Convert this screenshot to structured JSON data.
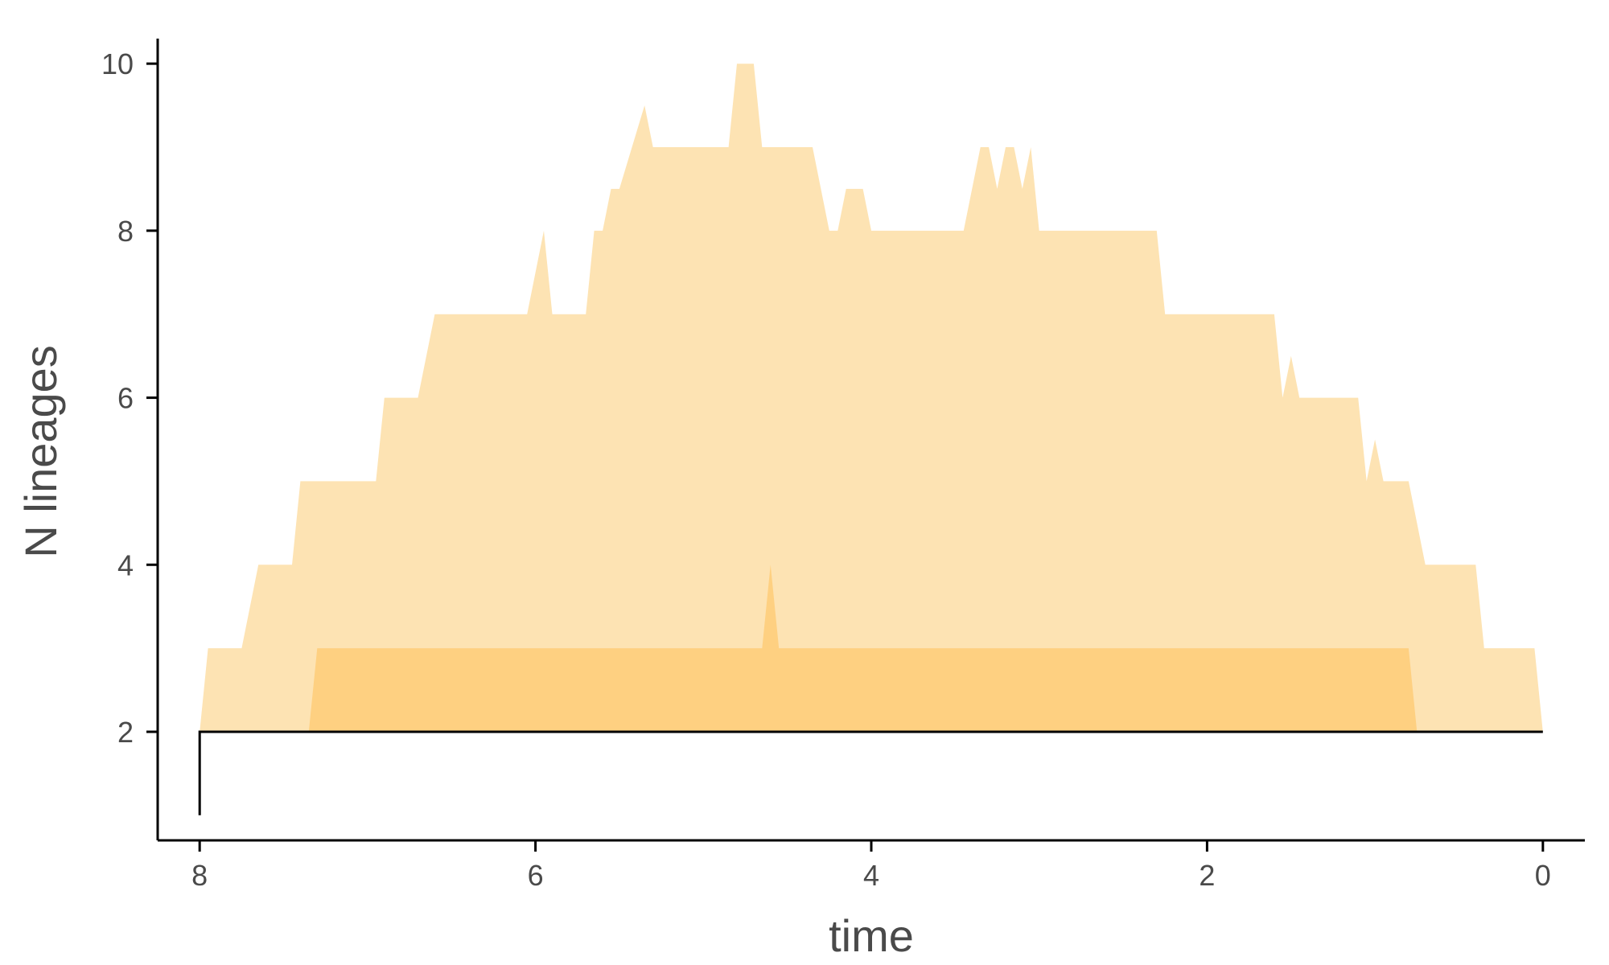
{
  "chart_data": {
    "type": "area",
    "title": "",
    "xlabel": "time",
    "ylabel": "N lineages",
    "xlim": [
      8.25,
      -0.25
    ],
    "ylim": [
      0.7,
      10.3
    ],
    "x_reversed": true,
    "x_ticks": [
      8,
      6,
      4,
      2,
      0
    ],
    "y_ticks": [
      2,
      4,
      6,
      8,
      10
    ],
    "grid": false,
    "legend": "none",
    "colors": {
      "outer_band": "#fde3b3",
      "inner_band": "#fed081",
      "line": "#000000",
      "axis": "#000000",
      "text": "#4a4a4a"
    },
    "series": [
      {
        "role": "outer_band",
        "upper": [
          [
            8.0,
            2
          ],
          [
            7.95,
            3
          ],
          [
            7.75,
            3
          ],
          [
            7.65,
            4
          ],
          [
            7.45,
            4
          ],
          [
            7.4,
            5
          ],
          [
            6.95,
            5
          ],
          [
            6.9,
            6
          ],
          [
            6.7,
            6
          ],
          [
            6.6,
            7
          ],
          [
            6.05,
            7
          ],
          [
            5.95,
            8
          ],
          [
            5.9,
            7
          ],
          [
            5.7,
            7
          ],
          [
            5.65,
            8
          ],
          [
            5.6,
            8
          ],
          [
            5.55,
            8.5
          ],
          [
            5.5,
            8.5
          ],
          [
            5.35,
            9.5
          ],
          [
            5.3,
            9
          ],
          [
            4.85,
            9
          ],
          [
            4.8,
            10
          ],
          [
            4.7,
            10
          ],
          [
            4.65,
            9
          ],
          [
            4.35,
            9
          ],
          [
            4.25,
            8
          ],
          [
            4.2,
            8
          ],
          [
            4.15,
            8.5
          ],
          [
            4.05,
            8.5
          ],
          [
            4.0,
            8
          ],
          [
            3.45,
            8
          ],
          [
            3.35,
            9
          ],
          [
            3.3,
            9
          ],
          [
            3.25,
            8.5
          ],
          [
            3.2,
            9
          ],
          [
            3.15,
            9
          ],
          [
            3.1,
            8.5
          ],
          [
            3.05,
            9
          ],
          [
            3.0,
            8
          ],
          [
            2.3,
            8
          ],
          [
            2.25,
            7
          ],
          [
            1.6,
            7
          ],
          [
            1.55,
            6
          ],
          [
            1.5,
            6.5
          ],
          [
            1.45,
            6
          ],
          [
            1.1,
            6
          ],
          [
            1.05,
            5
          ],
          [
            1.0,
            5.5
          ],
          [
            0.95,
            5
          ],
          [
            0.8,
            5
          ],
          [
            0.7,
            4
          ],
          [
            0.4,
            4
          ],
          [
            0.35,
            3
          ],
          [
            0.05,
            3
          ],
          [
            0.0,
            2
          ]
        ],
        "lower": 2
      },
      {
        "role": "inner_band",
        "upper": [
          [
            7.35,
            2
          ],
          [
            7.3,
            3
          ],
          [
            4.65,
            3
          ],
          [
            4.6,
            4
          ],
          [
            4.55,
            3
          ],
          [
            0.8,
            3
          ],
          [
            0.75,
            2
          ]
        ],
        "lower": 2
      },
      {
        "role": "line",
        "values": [
          [
            8.0,
            1
          ],
          [
            8.0,
            2
          ],
          [
            0.0,
            2
          ]
        ]
      }
    ]
  }
}
